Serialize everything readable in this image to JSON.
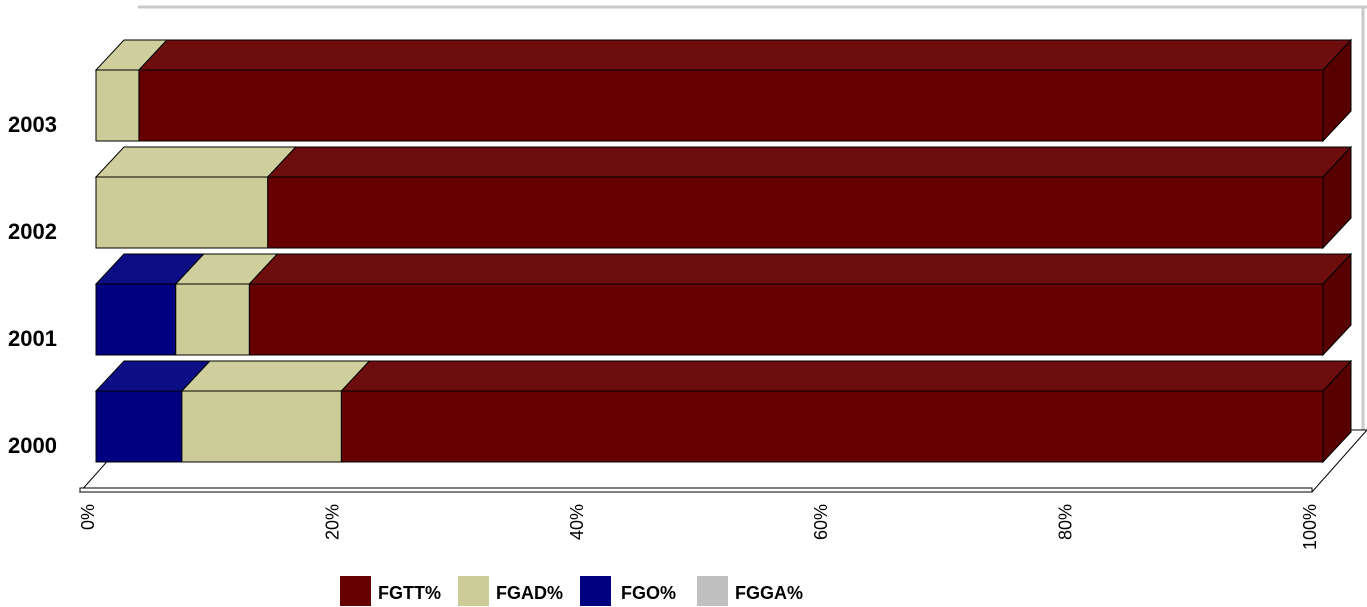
{
  "chart_data": {
    "type": "bar",
    "orientation": "horizontal",
    "stacked": "percent",
    "three_d": true,
    "categories": [
      "2000",
      "2001",
      "2002",
      "2003"
    ],
    "series": [
      {
        "name": "FGO%",
        "color": "#000080",
        "values": [
          7,
          6.5,
          0,
          0
        ]
      },
      {
        "name": "FGAD%",
        "color": "#CCCC99",
        "values": [
          13,
          6,
          14,
          3.5
        ]
      },
      {
        "name": "FGTT%",
        "color": "#660000",
        "values": [
          80,
          87.5,
          86,
          96.5
        ]
      },
      {
        "name": "FGGA%",
        "color": "#C0C0C0",
        "values": [
          0,
          0,
          0,
          0
        ]
      }
    ],
    "x_ticks": [
      "0%",
      "20%",
      "40%",
      "60%",
      "80%",
      "100%"
    ],
    "xlim": [
      0,
      100
    ],
    "legend": {
      "position": "bottom",
      "order": [
        "FGTT%",
        "FGAD%",
        "FGO%",
        "FGGA%"
      ]
    },
    "grid": false
  }
}
